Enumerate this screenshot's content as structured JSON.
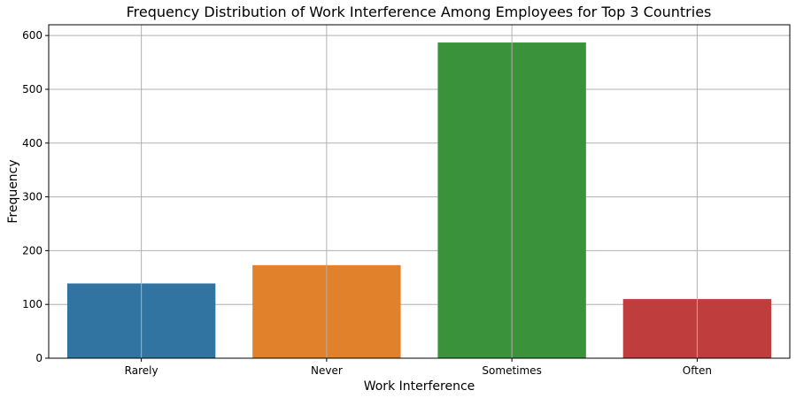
{
  "chart_data": {
    "type": "bar",
    "title": "Frequency Distribution of Work Interference Among Employees for Top 3 Countries",
    "xlabel": "Work Interference",
    "ylabel": "Frequency",
    "categories": [
      "Rarely",
      "Never",
      "Sometimes",
      "Often"
    ],
    "values": [
      139,
      173,
      587,
      110
    ],
    "colors": [
      "#3274a1",
      "#e1812c",
      "#3a923a",
      "#c03d3e"
    ],
    "ylim": [
      0,
      620
    ],
    "yticks": [
      0,
      100,
      200,
      300,
      400,
      500,
      600
    ],
    "grid": true,
    "legend": "none"
  }
}
